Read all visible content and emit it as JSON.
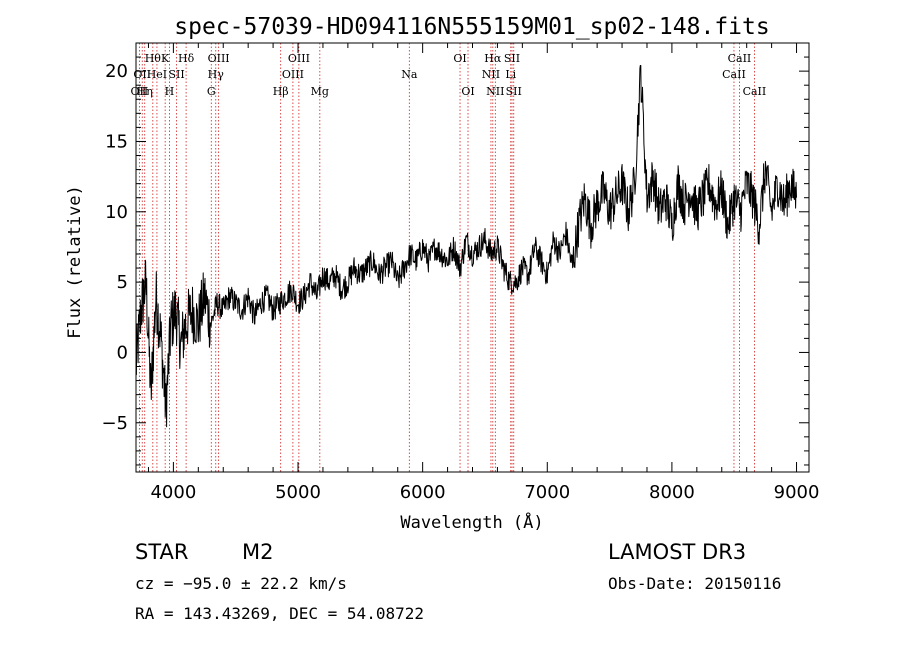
{
  "chart_data": {
    "type": "line",
    "title": "spec-57039-HD094116N555159M01_sp02-148.fits",
    "xlabel": "Wavelength (Å)",
    "ylabel": "Flux (relative)",
    "xlim": [
      3700,
      9100
    ],
    "ylim": [
      -8.5,
      22
    ],
    "xticks": [
      {
        "value": 4000,
        "label": "4000"
      },
      {
        "value": 5000,
        "label": "5000"
      },
      {
        "value": 6000,
        "label": "6000"
      },
      {
        "value": 7000,
        "label": "7000"
      },
      {
        "value": 8000,
        "label": "8000"
      },
      {
        "value": 9000,
        "label": "9000"
      }
    ],
    "yticks": [
      {
        "value": -5,
        "label": "−5"
      },
      {
        "value": 0,
        "label": "0"
      },
      {
        "value": 5,
        "label": "5"
      },
      {
        "value": 10,
        "label": "10"
      },
      {
        "value": 15,
        "label": "15"
      },
      {
        "value": 20,
        "label": "20"
      }
    ],
    "series": [
      {
        "name": "spectrum",
        "x": [
          3700,
          3740,
          3780,
          3820,
          3860,
          3900,
          3940,
          3980,
          4020,
          4060,
          4100,
          4150,
          4200,
          4250,
          4300,
          4350,
          4400,
          4450,
          4500,
          4550,
          4600,
          4650,
          4700,
          4750,
          4800,
          4850,
          4900,
          4950,
          5000,
          5050,
          5100,
          5150,
          5200,
          5250,
          5300,
          5350,
          5400,
          5450,
          5500,
          5550,
          5600,
          5650,
          5700,
          5750,
          5800,
          5850,
          5900,
          5950,
          6000,
          6050,
          6100,
          6150,
          6200,
          6250,
          6300,
          6350,
          6400,
          6450,
          6500,
          6550,
          6600,
          6650,
          6700,
          6750,
          6800,
          6850,
          6900,
          6950,
          7000,
          7050,
          7100,
          7150,
          7200,
          7250,
          7300,
          7350,
          7400,
          7450,
          7500,
          7550,
          7600,
          7650,
          7700,
          7750,
          7800,
          7850,
          7900,
          7950,
          8000,
          8050,
          8100,
          8150,
          8200,
          8250,
          8300,
          8350,
          8400,
          8450,
          8500,
          8550,
          8600,
          8650,
          8700,
          8750,
          8800,
          8850,
          8900,
          8950,
          9000
        ],
        "y": [
          -1,
          3,
          5,
          -3,
          4,
          1,
          -4,
          2,
          3,
          0.5,
          2,
          3,
          2,
          4,
          2,
          3.5,
          3,
          4,
          3.5,
          3,
          4,
          2.5,
          3.5,
          4,
          3,
          3.5,
          4,
          4.5,
          3.5,
          4,
          5,
          4,
          5.5,
          5,
          5.5,
          4.5,
          5,
          6,
          5.5,
          6,
          6.5,
          5.5,
          6,
          6.5,
          5,
          6,
          7,
          6.5,
          7.5,
          6.5,
          7.5,
          7,
          6.5,
          7.5,
          6,
          8,
          7,
          7.5,
          8,
          7,
          7.5,
          6,
          5,
          5,
          6,
          5.5,
          7.5,
          6.5,
          5.5,
          8,
          7,
          8.5,
          6,
          9,
          11,
          9,
          10.5,
          11.5,
          10,
          11,
          12,
          10,
          12,
          20,
          11,
          12.5,
          10,
          11,
          9,
          12,
          10.5,
          11.5,
          10,
          11,
          12,
          10.5,
          11.5,
          9,
          11,
          10,
          12,
          11,
          9,
          13,
          10,
          12,
          10.5,
          12,
          11
        ]
      }
    ],
    "emission_lines": [
      {
        "wavelength": 3727,
        "label": "OII",
        "row": 3
      },
      {
        "wavelength": 3750,
        "label": "OII",
        "row": 2
      },
      {
        "wavelength": 3770,
        "label": "Hη",
        "row": 3
      },
      {
        "wavelength": 3835,
        "label": "Hθ",
        "row": 1
      },
      {
        "wavelength": 3868,
        "label": "HeI",
        "row": 2
      },
      {
        "wavelength": 3934,
        "label": "K",
        "row": 1
      },
      {
        "wavelength": 3968,
        "label": "H",
        "row": 3
      },
      {
        "wavelength": 4026,
        "label": "SII",
        "row": 2
      },
      {
        "wavelength": 4102,
        "label": "Hδ",
        "row": 1
      },
      {
        "wavelength": 4304,
        "label": "G",
        "row": 3
      },
      {
        "wavelength": 4340,
        "label": "Hγ",
        "row": 2
      },
      {
        "wavelength": 4363,
        "label": "OIII",
        "row": 1
      },
      {
        "wavelength": 4861,
        "label": "Hβ",
        "row": 3
      },
      {
        "wavelength": 4959,
        "label": "OIII",
        "row": 2
      },
      {
        "wavelength": 5007,
        "label": "OIII",
        "row": 1
      },
      {
        "wavelength": 5175,
        "label": "Mg",
        "row": 3
      },
      {
        "wavelength": 5893,
        "label": "Na",
        "row": 2
      },
      {
        "wavelength": 6300,
        "label": "OI",
        "row": 1
      },
      {
        "wavelength": 6364,
        "label": "OI",
        "row": 3
      },
      {
        "wavelength": 6548,
        "label": "NII",
        "row": 2
      },
      {
        "wavelength": 6563,
        "label": "Hα",
        "row": 1
      },
      {
        "wavelength": 6583,
        "label": "NII",
        "row": 3
      },
      {
        "wavelength": 6707,
        "label": "Li",
        "row": 2
      },
      {
        "wavelength": 6717,
        "label": "SII",
        "row": 1
      },
      {
        "wavelength": 6731,
        "label": "SII",
        "row": 3
      },
      {
        "wavelength": 8498,
        "label": "CaII",
        "row": 2
      },
      {
        "wavelength": 8542,
        "label": "CaII",
        "row": 1
      },
      {
        "wavelength": 8662,
        "label": "CaII",
        "row": 3
      }
    ],
    "line_color": "#d02020",
    "spectrum_color": "#000000"
  },
  "info": {
    "object_class": "STAR",
    "subclass": "M2",
    "survey": "LAMOST DR3",
    "redshift": "cz = −95.0 ± 22.2 km/s",
    "obs_date": "Obs-Date: 20150116",
    "coords": "RA = 143.43269, DEC =  54.08722"
  }
}
